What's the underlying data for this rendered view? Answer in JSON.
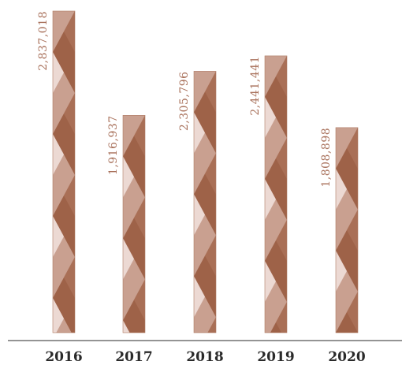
{
  "chart_data": {
    "type": "bar",
    "categories": [
      "2016",
      "2017",
      "2018",
      "2019",
      "2020"
    ],
    "values": [
      2837018,
      1916937,
      2305796,
      2441441,
      1808898
    ],
    "value_labels": [
      "2,837,018",
      "1,916,937",
      "2,305,796",
      "2,441,441",
      "1,808,898"
    ],
    "title": "",
    "xlabel": "",
    "ylabel": "",
    "ylim": [
      0,
      2837018
    ],
    "grid": false,
    "legend": "none"
  },
  "colors": {
    "bar_base": "#c9a090",
    "bar_dark": "#9e6248",
    "bar_light": "#ecd9d3",
    "bar_edge": "#b07c66",
    "value_label": "#a8705a",
    "axis": "#555555",
    "category_label": "#2a2a2a"
  }
}
